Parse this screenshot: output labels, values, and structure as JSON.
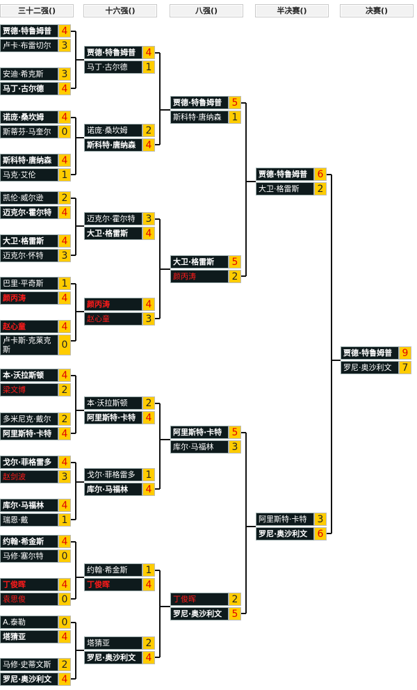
{
  "headers": [
    "三十二强()",
    "十六强()",
    "八强()",
    "半决赛()",
    "决赛()"
  ],
  "rounds": [
    [
      [
        {
          "name": "贾德·特鲁姆普",
          "score": "4",
          "win": true
        },
        {
          "name": "卢卡·布雷切尔",
          "score": "3"
        }
      ],
      [
        {
          "name": "安迪·希克斯",
          "score": "3"
        },
        {
          "name": "马丁·古尔德",
          "score": "4",
          "win": true
        }
      ],
      [
        {
          "name": "诺庞·桑坎姆",
          "score": "4",
          "win": true
        },
        {
          "name": "斯蒂芬·马奎尔",
          "score": "0"
        }
      ],
      [
        {
          "name": "斯科特·唐纳森",
          "score": "4",
          "win": true
        },
        {
          "name": "马克·艾伦",
          "score": "1"
        }
      ],
      [
        {
          "name": "凯伦·威尔逊",
          "score": "2"
        },
        {
          "name": "迈克尔·霍尔特",
          "score": "4",
          "win": true
        }
      ],
      [
        {
          "name": "大卫·格雷斯",
          "score": "4",
          "win": true
        },
        {
          "name": "迈克尔·怀特",
          "score": "3"
        }
      ],
      [
        {
          "name": "巴里·平奇斯",
          "score": "1"
        },
        {
          "name": "颜丙涛",
          "score": "4",
          "win": true,
          "red": true
        }
      ],
      [
        {
          "name": "赵心童",
          "score": "4",
          "win": true,
          "red": true
        },
        {
          "name": "卢卡斯·克莱克斯",
          "score": "0"
        }
      ],
      [
        {
          "name": "本·沃拉斯顿",
          "score": "4",
          "win": true
        },
        {
          "name": "梁文博",
          "score": "2",
          "red": true
        }
      ],
      [
        {
          "name": "多米尼克·戴尔",
          "score": "2"
        },
        {
          "name": "阿里斯特·卡特",
          "score": "4",
          "win": true
        }
      ],
      [
        {
          "name": "戈尔·菲格雷多",
          "score": "4",
          "win": true
        },
        {
          "name": "赵剑波",
          "score": "3",
          "red": true
        }
      ],
      [
        {
          "name": "库尔·马福林",
          "score": "4",
          "win": true
        },
        {
          "name": "瑞恩·戴",
          "score": "1"
        }
      ],
      [
        {
          "name": "约翰·希金斯",
          "score": "4",
          "win": true
        },
        {
          "name": "马修·塞尔特",
          "score": "0"
        }
      ],
      [
        {
          "name": "丁俊晖",
          "score": "4",
          "win": true,
          "red": true
        },
        {
          "name": "袁思俊",
          "score": "0",
          "red": true
        }
      ],
      [
        {
          "name": "A.泰勒",
          "score": "0"
        },
        {
          "name": "塔猜亚",
          "score": "4",
          "win": true
        }
      ],
      [
        {
          "name": "马修·史蒂文斯",
          "score": "2"
        },
        {
          "name": "罗尼·奥沙利文",
          "score": "4",
          "win": true
        }
      ]
    ],
    [
      [
        {
          "name": "贾德·特鲁姆普",
          "score": "4",
          "win": true
        },
        {
          "name": "马丁·古尔德",
          "score": "1"
        }
      ],
      [
        {
          "name": "诺庞·桑坎姆",
          "score": "2"
        },
        {
          "name": "斯科特·唐纳森",
          "score": "4",
          "win": true
        }
      ],
      [
        {
          "name": "迈克尔·霍尔特",
          "score": "3"
        },
        {
          "name": "大卫·格雷斯",
          "score": "4",
          "win": true
        }
      ],
      [
        {
          "name": "颜丙涛",
          "score": "4",
          "win": true,
          "red": true
        },
        {
          "name": "赵心童",
          "score": "3",
          "red": true
        }
      ],
      [
        {
          "name": "本·沃拉斯顿",
          "score": "2"
        },
        {
          "name": "阿里斯特·卡特",
          "score": "4",
          "win": true
        }
      ],
      [
        {
          "name": "戈尔·菲格雷多",
          "score": "1"
        },
        {
          "name": "库尔·马福林",
          "score": "4",
          "win": true
        }
      ],
      [
        {
          "name": "约翰·希金斯",
          "score": "1"
        },
        {
          "name": "丁俊晖",
          "score": "4",
          "win": true,
          "red": true
        }
      ],
      [
        {
          "name": "塔猜亚",
          "score": "2"
        },
        {
          "name": "罗尼·奥沙利文",
          "score": "4",
          "win": true
        }
      ]
    ],
    [
      [
        {
          "name": "贾德·特鲁姆普",
          "score": "5",
          "win": true
        },
        {
          "name": "斯科特·唐纳森",
          "score": "1"
        }
      ],
      [
        {
          "name": "大卫·格雷斯",
          "score": "5",
          "win": true
        },
        {
          "name": "颜丙涛",
          "score": "2",
          "red": true
        }
      ],
      [
        {
          "name": "阿里斯特·卡特",
          "score": "5",
          "win": true
        },
        {
          "name": "库尔·马福林",
          "score": "3"
        }
      ],
      [
        {
          "name": "丁俊晖",
          "score": "2",
          "red": true
        },
        {
          "name": "罗尼·奥沙利文",
          "score": "5",
          "win": true
        }
      ]
    ],
    [
      [
        {
          "name": "贾德·特鲁姆普",
          "score": "6",
          "win": true
        },
        {
          "name": "大卫·格雷斯",
          "score": "2"
        }
      ],
      [
        {
          "name": "阿里斯特·卡特",
          "score": "3"
        },
        {
          "name": "罗尼·奥沙利文",
          "score": "6",
          "win": true
        }
      ]
    ],
    [
      [
        {
          "name": "贾德·特鲁姆普",
          "score": "9",
          "win": true
        },
        {
          "name": "罗尼·奥沙利文",
          "score": "7"
        }
      ]
    ]
  ],
  "colors": {
    "name_bg": "#0e1a1c",
    "score_bg": "#ffcc00",
    "winner_score": "#e00000",
    "chinese_player": "#ff1a1a"
  }
}
